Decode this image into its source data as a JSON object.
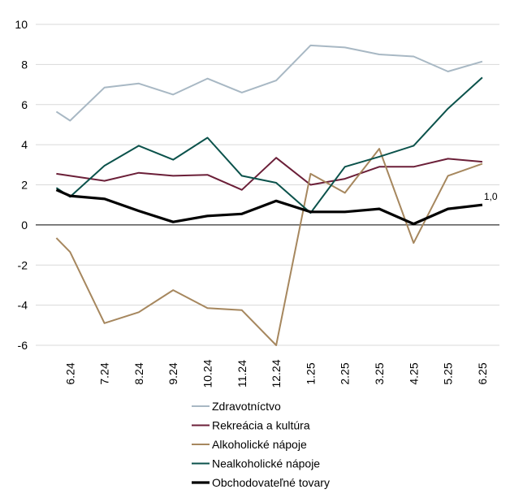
{
  "chart_data": {
    "type": "line",
    "title": "",
    "xlabel": "",
    "ylabel": "",
    "ylim": [
      -6,
      10
    ],
    "yticks": [
      "-6",
      "-4",
      "-2",
      "0",
      "2",
      "4",
      "6",
      "8",
      "10"
    ],
    "grid": true,
    "legend_position": "bottom",
    "categories": [
      "6.24",
      "7.24",
      "8.24",
      "9.24",
      "10.24",
      "11.24",
      "12.24",
      "1.25",
      "2.25",
      "3.25",
      "4.25",
      "5.25",
      "6.25"
    ],
    "x": [
      0.6,
      1.0,
      2.0,
      3.0,
      4.0,
      5.0,
      6.0,
      7.0,
      8.0,
      9.0,
      10.0,
      11.0,
      12.0,
      13.0
    ],
    "series": [
      {
        "name": "Zdravotníctvo",
        "color": "#a8b8c4",
        "width": 2,
        "values": [
          5.65,
          5.2,
          6.85,
          7.05,
          6.5,
          7.3,
          6.6,
          7.2,
          8.95,
          8.85,
          8.5,
          8.4,
          7.65,
          8.15
        ]
      },
      {
        "name": "Rekreácia a kultúra",
        "color": "#6b1f38",
        "width": 2,
        "values": [
          2.55,
          2.45,
          2.2,
          2.6,
          2.45,
          2.5,
          1.75,
          3.35,
          2.0,
          2.3,
          2.9,
          2.9,
          3.3,
          3.15
        ]
      },
      {
        "name": "Alkoholické nápoje",
        "color": "#a6875e",
        "width": 2,
        "values": [
          -0.65,
          -1.35,
          -4.9,
          -4.35,
          -3.25,
          -4.15,
          -4.25,
          -6.0,
          2.55,
          1.6,
          3.8,
          -0.9,
          2.45,
          3.05
        ]
      },
      {
        "name": "Nealkoholické nápoje",
        "color": "#0b524b",
        "width": 2,
        "values": [
          1.85,
          1.4,
          2.95,
          3.95,
          3.25,
          4.35,
          2.45,
          2.1,
          0.6,
          2.9,
          3.4,
          3.95,
          5.8,
          7.35
        ]
      },
      {
        "name": "Obchodovateľné tovary",
        "color": "#000000",
        "width": 3.2,
        "values": [
          1.75,
          1.45,
          1.3,
          0.7,
          0.15,
          0.45,
          0.55,
          1.2,
          0.65,
          0.65,
          0.8,
          0.05,
          0.8,
          1.0
        ]
      }
    ],
    "annotations": [
      {
        "series": "Obchodovateľné tovary",
        "category": "6.25",
        "label": "1,0"
      }
    ]
  }
}
